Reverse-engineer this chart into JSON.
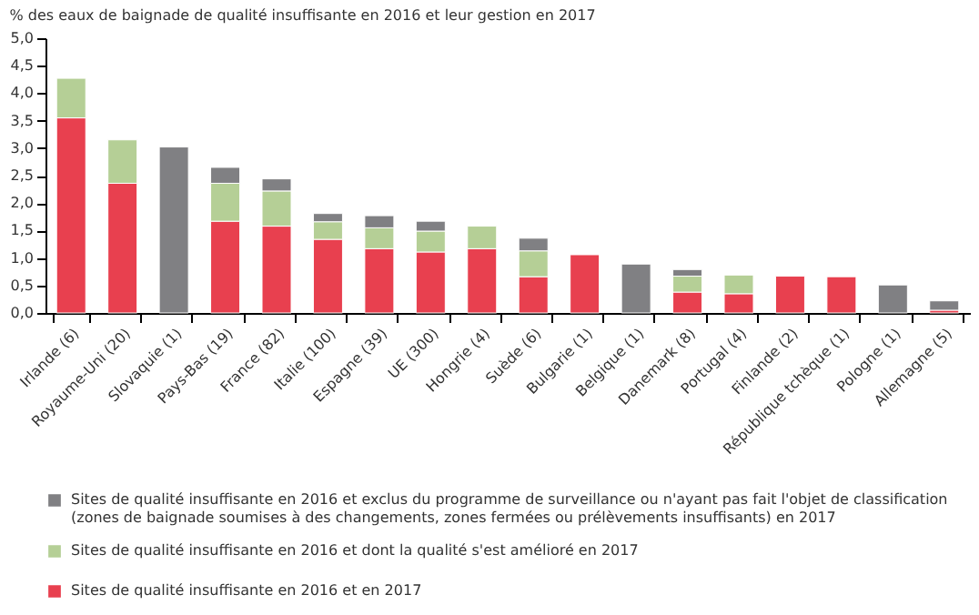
{
  "chart_data": {
    "type": "bar",
    "stacked": true,
    "title": "% des eaux de baignade de qualité insuffisante en 2016 et leur gestion en 2017",
    "categories": [
      "Irlande (6)",
      "Royaume-Uni (20)",
      "Slovaquie (1)",
      "Pays-Bas (19)",
      "France (82)",
      "Italie (100)",
      "Espagne (39)",
      "UE (300)",
      "Hongrie (4)",
      "Suède (6)",
      "Bulgarie (1)",
      "Belgique (1)",
      "Danemark (8)",
      "Portugal (4)",
      "Finlande (2)",
      "République tchèque (1)",
      "Pologne (1)",
      "Allemagne (5)"
    ],
    "series": [
      {
        "name": "Sites de qualité insuffisante en 2016 et en 2017",
        "color": "#e8404f",
        "values": [
          3.55,
          2.36,
          null,
          1.67,
          1.58,
          1.34,
          1.17,
          1.11,
          1.17,
          0.66,
          1.06,
          null,
          0.38,
          0.35,
          0.67,
          0.66,
          null,
          0.05
        ]
      },
      {
        "name": "Sites de qualité insuffisante en 2016 et dont la qualité s'est amélioré en 2017",
        "color": "#b5cf96",
        "values": [
          0.72,
          0.79,
          null,
          0.69,
          0.64,
          0.32,
          0.38,
          0.38,
          0.41,
          0.47,
          null,
          null,
          0.29,
          0.34,
          null,
          null,
          null,
          null
        ]
      },
      {
        "name": "Sites de qualité insuffisante en 2016 et exclus du programme de surveillance ou n'ayant pas fait l'objet de classification (zones de baignade soumises à des changements, zones fermées ou prélèvements insuffisants) en 2017",
        "color": "#808083",
        "values": [
          null,
          null,
          3.02,
          0.29,
          0.22,
          0.15,
          0.22,
          0.18,
          null,
          0.23,
          null,
          0.89,
          0.12,
          null,
          null,
          null,
          0.51,
          0.17
        ]
      }
    ],
    "ylim": [
      0,
      5
    ],
    "yticks": [
      {
        "value": 0,
        "label": "0,0"
      },
      {
        "value": 0.5,
        "label": "0,5"
      },
      {
        "value": 1,
        "label": "1,0"
      },
      {
        "value": 1.5,
        "label": "1,5"
      },
      {
        "value": 2,
        "label": "2,0"
      },
      {
        "value": 2.5,
        "label": "2,5"
      },
      {
        "value": 3,
        "label": "3,0"
      },
      {
        "value": 3.5,
        "label": "3,5"
      },
      {
        "value": 4,
        "label": "4,0"
      },
      {
        "value": 4.5,
        "label": "4,5"
      },
      {
        "value": 5,
        "label": "5,0"
      }
    ],
    "grid": false,
    "legend": "bottom"
  }
}
